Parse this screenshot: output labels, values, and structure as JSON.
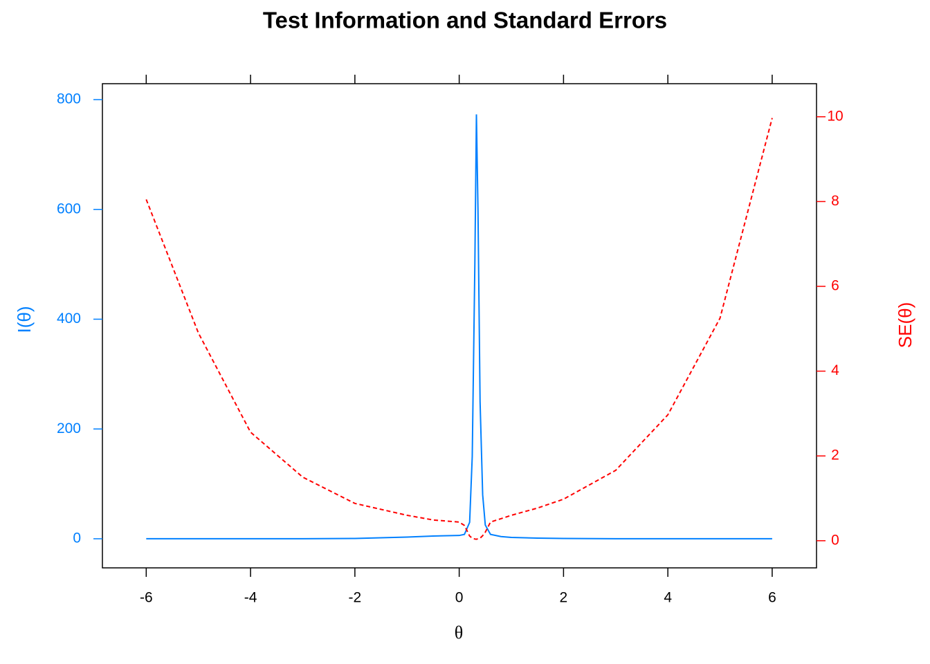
{
  "chart_data": {
    "type": "line",
    "title": "Test Information and Standard Errors",
    "x_label": "θ",
    "y_label": "I(θ)",
    "y2_label": "SE(θ)",
    "x": [
      -6,
      -5,
      -4,
      -3,
      -2,
      -1,
      -0.5,
      0,
      0.1,
      0.2,
      0.25,
      0.3,
      0.33,
      0.36,
      0.4,
      0.45,
      0.5,
      0.6,
      0.8,
      1,
      1.5,
      2,
      3,
      4,
      5,
      6
    ],
    "series": [
      {
        "name": "I(θ)",
        "color": "#0080ff",
        "dash": false,
        "values": [
          0.02,
          0.03,
          0.05,
          0.1,
          0.5,
          3,
          5,
          6,
          8,
          30,
          150,
          500,
          773,
          600,
          250,
          80,
          25,
          8,
          4,
          2.5,
          1.2,
          0.6,
          0.15,
          0.05,
          0.02,
          0.01
        ]
      },
      {
        "name": "SE(θ)",
        "color": "#ff0000",
        "dash": true,
        "axis": "y2",
        "values": [
          8.05,
          4.9,
          2.56,
          1.5,
          0.88,
          0.6,
          0.49,
          0.44,
          0.36,
          0.11,
          0.06,
          0.04,
          0.036,
          0.045,
          0.06,
          0.12,
          0.2,
          0.44,
          0.52,
          0.6,
          0.77,
          0.98,
          1.66,
          2.97,
          5.25,
          9.97
        ]
      }
    ],
    "xlim": [
      -6.84,
      6.85
    ],
    "xticks": [
      -6,
      -4,
      -2,
      0,
      2,
      4,
      6
    ],
    "ylim": [
      -53,
      829
    ],
    "yticks": [
      0,
      200,
      400,
      600,
      800
    ],
    "y2lim": [
      -0.64,
      10.78
    ],
    "y2ticks": [
      0,
      2,
      4,
      6,
      8,
      10
    ]
  }
}
